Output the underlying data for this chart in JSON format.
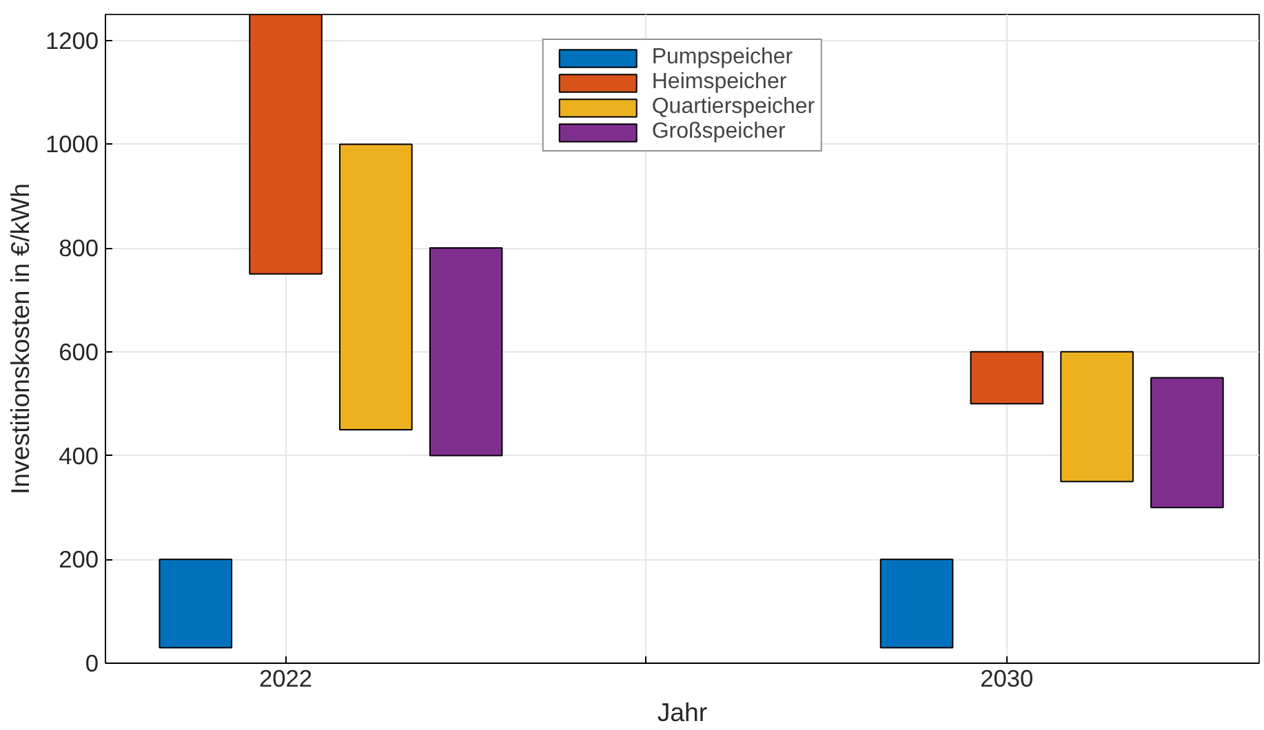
{
  "chart_data": {
    "type": "bar",
    "xlabel": "Jahr",
    "ylabel": "Investitionskosten in €/kWh",
    "xlim": [
      2020,
      2032.8
    ],
    "ylim": [
      0,
      1250
    ],
    "xticks": [
      2022,
      {
        "value": 2026,
        "label": null
      },
      2030
    ],
    "yticks": [
      0,
      200,
      400,
      600,
      800,
      1000,
      1200
    ],
    "grid": true,
    "legend": "top",
    "series": [
      {
        "name": "Pumpspeicher",
        "color": "#0072bd",
        "x": [
          2021,
          2029
        ],
        "base": [
          30,
          30
        ],
        "values": [
          170,
          170
        ]
      },
      {
        "name": "Heimspeicher",
        "color": "#d95319",
        "x": [
          2022,
          2030
        ],
        "base": [
          750,
          500
        ],
        "values": [
          500,
          100
        ]
      },
      {
        "name": "Quartierspeicher",
        "color": "#edb120",
        "x": [
          2023,
          2031
        ],
        "base": [
          450,
          350
        ],
        "values": [
          550,
          250
        ]
      },
      {
        "name": "Großspeicher",
        "color": "#7e2f8e",
        "x": [
          2024,
          2032
        ],
        "base": [
          400,
          300
        ],
        "values": [
          400,
          250
        ]
      }
    ]
  }
}
